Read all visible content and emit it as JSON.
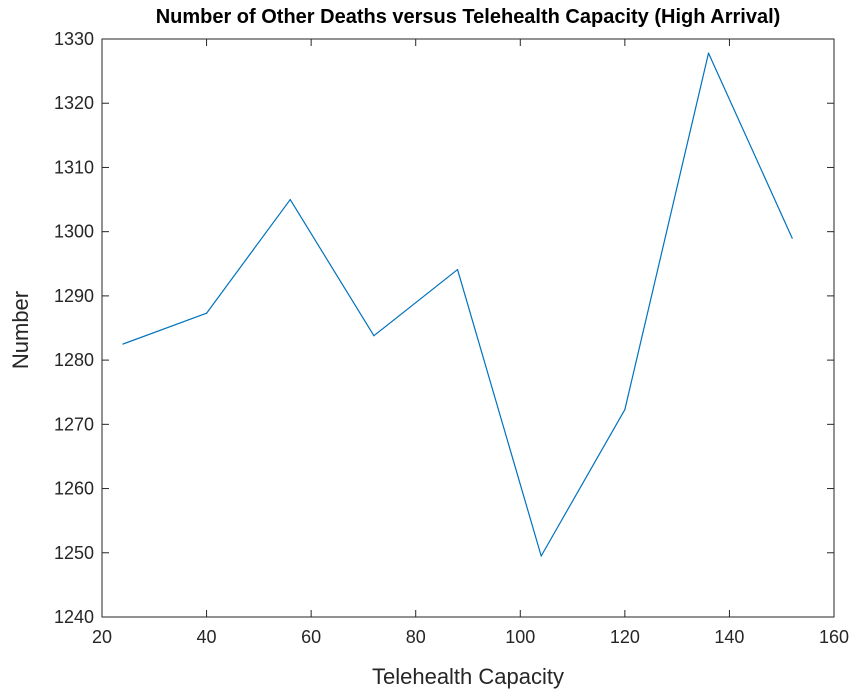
{
  "chart_data": {
    "type": "line",
    "title": "Number of Other Deaths versus Telehealth Capacity (High Arrival)",
    "xlabel": "Telehealth Capacity",
    "ylabel": "Number",
    "xlim": [
      20,
      160
    ],
    "ylim": [
      1240,
      1330
    ],
    "xticks": [
      "20",
      "40",
      "60",
      "80",
      "100",
      "120",
      "140",
      "160"
    ],
    "yticks": [
      "1240",
      "1250",
      "1260",
      "1270",
      "1280",
      "1290",
      "1300",
      "1310",
      "1320",
      "1330"
    ],
    "grid": false,
    "legend": "none",
    "series": [
      {
        "x": [
          24,
          40,
          56,
          72,
          88,
          104,
          120,
          136,
          152
        ],
        "values": [
          1282.5,
          1287.3,
          1305.0,
          1283.8,
          1294.1,
          1249.5,
          1272.3,
          1327.8,
          1299.0
        ],
        "color": "#0072BD"
      }
    ],
    "colors": {
      "line": "#0072BD",
      "axis": "#262626"
    }
  }
}
